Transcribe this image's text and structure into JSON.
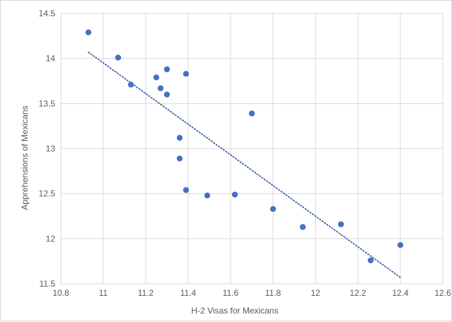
{
  "chart_data": {
    "type": "scatter",
    "xlabel": "H-2 Visas for Mexicans",
    "ylabel": "Apprehensions of Mexicans",
    "xlim": [
      10.8,
      12.6
    ],
    "ylim": [
      11.5,
      14.5
    ],
    "xticks": [
      10.8,
      11,
      11.2,
      11.4,
      11.6,
      11.8,
      12,
      12.2,
      12.4,
      12.6
    ],
    "yticks": [
      11.5,
      12,
      12.5,
      13,
      13.5,
      14,
      14.5
    ],
    "xtick_labels": [
      "10.8",
      "11",
      "11.2",
      "11.4",
      "11.6",
      "11.8",
      "12",
      "12.2",
      "12.4",
      "12.6"
    ],
    "ytick_labels": [
      "11.5",
      "12",
      "12.5",
      "13",
      "13.5",
      "14",
      "14.5"
    ],
    "grid": "vertical and horizontal",
    "marker_color": "#4472c4",
    "trendline": {
      "style": "dotted",
      "color": "#2f5597",
      "x": [
        10.93,
        12.4
      ],
      "y": [
        14.07,
        11.57
      ]
    },
    "points": [
      {
        "x": 10.93,
        "y": 14.29
      },
      {
        "x": 11.07,
        "y": 14.01
      },
      {
        "x": 11.13,
        "y": 13.71
      },
      {
        "x": 11.25,
        "y": 13.79
      },
      {
        "x": 11.27,
        "y": 13.67
      },
      {
        "x": 11.3,
        "y": 13.88
      },
      {
        "x": 11.3,
        "y": 13.6
      },
      {
        "x": 11.39,
        "y": 13.83
      },
      {
        "x": 11.36,
        "y": 13.12
      },
      {
        "x": 11.36,
        "y": 12.89
      },
      {
        "x": 11.39,
        "y": 12.54
      },
      {
        "x": 11.49,
        "y": 12.48
      },
      {
        "x": 11.62,
        "y": 12.49
      },
      {
        "x": 11.7,
        "y": 13.39
      },
      {
        "x": 11.8,
        "y": 12.33
      },
      {
        "x": 11.94,
        "y": 12.13
      },
      {
        "x": 12.12,
        "y": 12.16
      },
      {
        "x": 12.26,
        "y": 11.76
      },
      {
        "x": 12.4,
        "y": 11.93
      }
    ]
  }
}
